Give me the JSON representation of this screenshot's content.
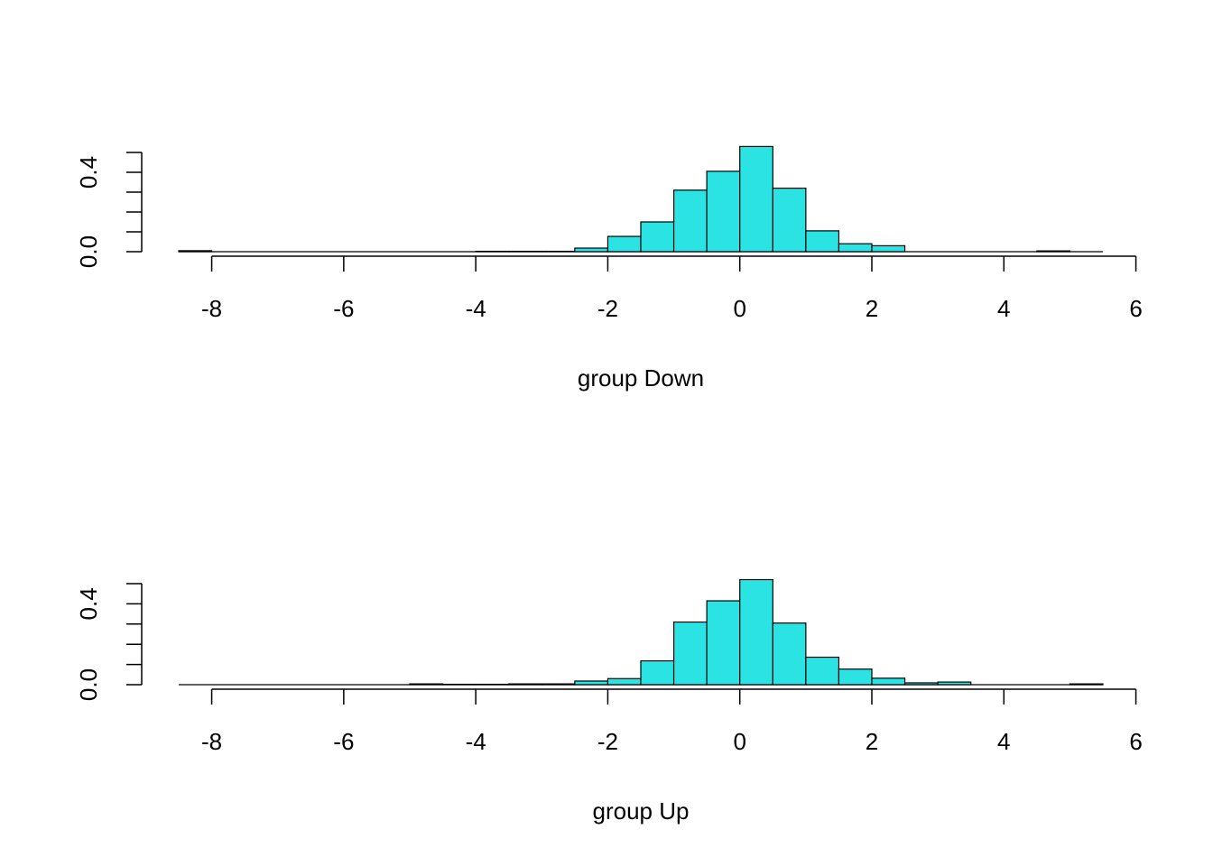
{
  "chart_data": [
    {
      "type": "histogram",
      "xlabel": "group Down",
      "color": "#2be3e3",
      "bins": [
        -8.5,
        -8,
        -7.5,
        -7,
        -6.5,
        -6,
        -5.5,
        -5,
        -4.5,
        -4,
        -3.5,
        -3,
        -2.5,
        -2,
        -1.5,
        -1,
        -0.5,
        0,
        0.5,
        1,
        1.5,
        2,
        2.5,
        3,
        3.5,
        4,
        4.5,
        5,
        5.5
      ],
      "values": [
        0.005,
        0,
        0,
        0,
        0,
        0,
        0,
        0,
        0,
        0.002,
        0.002,
        0.002,
        0.018,
        0.077,
        0.15,
        0.31,
        0.405,
        0.53,
        0.32,
        0.105,
        0.04,
        0.03,
        0,
        0,
        0,
        0,
        0.004,
        0
      ],
      "xlim": [
        -8.5,
        5.5
      ],
      "xticks": [
        -8,
        -6,
        -4,
        -2,
        0,
        2,
        4,
        6
      ],
      "ylim": [
        0,
        0.5
      ],
      "yticks": [
        {
          "value": 0,
          "label": "0.0"
        },
        {
          "value": 0.1,
          "label": null
        },
        {
          "value": 0.2,
          "label": null
        },
        {
          "value": 0.3,
          "label": null
        },
        {
          "value": 0.4,
          "label": "0.4"
        },
        {
          "value": 0.5,
          "label": null
        }
      ]
    },
    {
      "type": "histogram",
      "xlabel": "group Up",
      "color": "#2be3e3",
      "bins": [
        -8.5,
        -8,
        -7.5,
        -7,
        -6.5,
        -6,
        -5.5,
        -5,
        -4.5,
        -4,
        -3.5,
        -3,
        -2.5,
        -2,
        -1.5,
        -1,
        -0.5,
        0,
        0.5,
        1,
        1.5,
        2,
        2.5,
        3,
        3.5,
        4,
        4.5,
        5,
        5.5
      ],
      "values": [
        0,
        0,
        0,
        0,
        0,
        0,
        0,
        0.004,
        0.002,
        0.002,
        0.004,
        0.004,
        0.018,
        0.03,
        0.118,
        0.31,
        0.415,
        0.52,
        0.305,
        0.136,
        0.077,
        0.032,
        0.009,
        0.013,
        0,
        0,
        0,
        0.004
      ],
      "xlim": [
        -8.5,
        5.5
      ],
      "xticks": [
        -8,
        -6,
        -4,
        -2,
        0,
        2,
        4,
        6
      ],
      "ylim": [
        0,
        0.5
      ],
      "yticks": [
        {
          "value": 0,
          "label": "0.0"
        },
        {
          "value": 0.1,
          "label": null
        },
        {
          "value": 0.2,
          "label": null
        },
        {
          "value": 0.3,
          "label": null
        },
        {
          "value": 0.4,
          "label": "0.4"
        },
        {
          "value": 0.5,
          "label": null
        }
      ]
    }
  ]
}
